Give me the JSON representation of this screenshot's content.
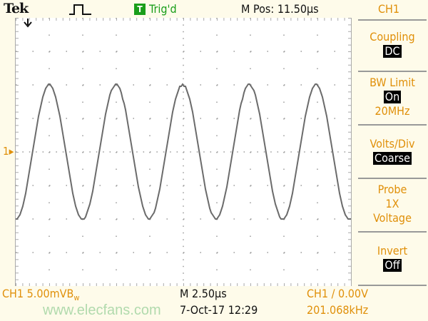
{
  "header": {
    "brand": "Tek",
    "acquisition_icon": "pulse-run-icon",
    "trigger_badge": "T",
    "trigger_status": "Trig'd",
    "m_pos": "M Pos: 11.50µs",
    "menu_title": "CH1"
  },
  "side_menu": [
    {
      "label": "Coupling",
      "value": "DC"
    },
    {
      "label": "BW Limit",
      "value": "On",
      "extra": "20MHz"
    },
    {
      "label": "Volts/Div",
      "value": "Coarse"
    },
    {
      "label": "Probe",
      "value": "1X",
      "extra": "Voltage"
    },
    {
      "label": "Invert",
      "value": "Off"
    }
  ],
  "markers": {
    "channel_ground": "1"
  },
  "footer": {
    "ch_scale": "CH1  5.00mV",
    "bw_mark": "B",
    "bw_sub": "w",
    "timebase": "M 2.50µs",
    "datetime": "7-Oct-17 12:29",
    "trigger": "CH1 ∕ 0.00V",
    "frequency": "201.068kHz",
    "watermark": "www.elecfans.com"
  },
  "colors": {
    "channel": "#e0900a",
    "trigger": "#1a9e1a",
    "trace": "#6b6b6b"
  },
  "waveform": {
    "shape": "sine",
    "frequency_khz": 201.068,
    "amplitude_div": 2,
    "time_per_div_us": 2.5
  }
}
